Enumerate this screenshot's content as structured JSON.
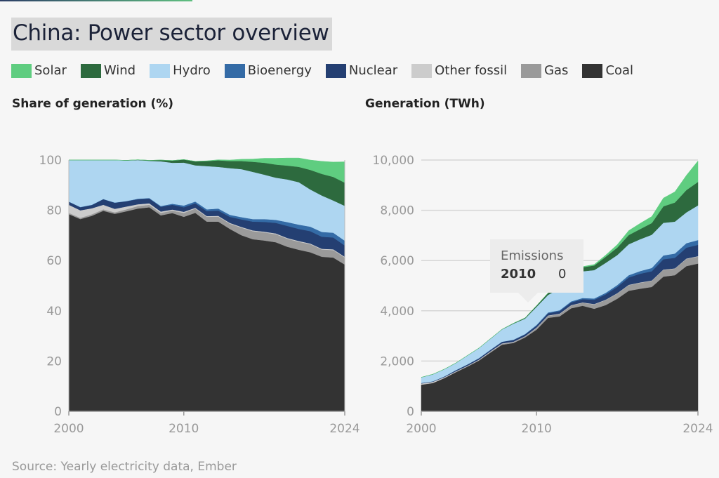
{
  "title": "China: Power sector overview",
  "legend": [
    {
      "label": "Solar",
      "color": "#5fcd80"
    },
    {
      "label": "Wind",
      "color": "#2d6a3e"
    },
    {
      "label": "Hydro",
      "color": "#aed6f1"
    },
    {
      "label": "Bioenergy",
      "color": "#346ba6"
    },
    {
      "label": "Nuclear",
      "color": "#243f72"
    },
    {
      "label": "Other fossil",
      "color": "#cccccc"
    },
    {
      "label": "Gas",
      "color": "#9a9a9a"
    },
    {
      "label": "Coal",
      "color": "#333333"
    }
  ],
  "source": "Source: Yearly electricity data, Ember",
  "tooltip": {
    "title": "Emissions",
    "year": "2010",
    "value": "0"
  },
  "chart_data": [
    {
      "type": "area",
      "stacked": true,
      "title": "Share of generation (%)",
      "xlabel": "",
      "ylabel": "",
      "x": [
        2000,
        2001,
        2002,
        2003,
        2004,
        2005,
        2006,
        2007,
        2008,
        2009,
        2010,
        2011,
        2012,
        2013,
        2014,
        2015,
        2016,
        2017,
        2018,
        2019,
        2020,
        2021,
        2022,
        2023,
        2024
      ],
      "xticks": [
        "2000",
        "2010",
        "2024"
      ],
      "yticks": [
        "0",
        "20",
        "40",
        "60",
        "80",
        "100"
      ],
      "ylim": [
        0,
        100
      ],
      "grid": false,
      "series": [
        {
          "name": "Coal",
          "values": [
            78.5,
            76.5,
            77.8,
            79.8,
            78.6,
            79.6,
            80.7,
            81.2,
            78.0,
            78.9,
            77.4,
            79.0,
            75.5,
            75.5,
            72.6,
            70.1,
            68.5,
            68.0,
            67.3,
            65.5,
            64.3,
            63.3,
            61.5,
            61.2,
            58.4
          ]
        },
        {
          "name": "Gas",
          "values": [
            0.5,
            0.5,
            0.6,
            0.6,
            0.6,
            0.8,
            1.0,
            1.0,
            1.0,
            1.0,
            1.6,
            1.7,
            1.9,
            2.0,
            2.1,
            3.0,
            3.2,
            3.2,
            3.2,
            3.2,
            3.2,
            3.2,
            2.9,
            3.0,
            2.8
          ]
        },
        {
          "name": "Other fossil",
          "values": [
            3.2,
            3.0,
            2.4,
            1.8,
            1.4,
            1.1,
            0.7,
            0.6,
            0.5,
            0.4,
            0.4,
            0.3,
            0.3,
            0.3,
            0.3,
            0.3,
            0.3,
            0.3,
            0.3,
            0.3,
            0.3,
            0.3,
            0.3,
            0.3,
            0.3
          ]
        },
        {
          "name": "Nuclear",
          "values": [
            1.2,
            1.2,
            1.3,
            2.2,
            2.4,
            2.1,
            2.0,
            1.9,
            1.9,
            1.9,
            1.8,
            1.8,
            2.0,
            2.1,
            2.4,
            3.0,
            3.5,
            3.9,
            4.2,
            4.8,
            4.8,
            4.9,
            4.8,
            4.7,
            4.5
          ]
        },
        {
          "name": "Bioenergy",
          "values": [
            0.1,
            0.1,
            0.1,
            0.1,
            0.1,
            0.1,
            0.2,
            0.2,
            0.3,
            0.4,
            0.7,
            0.7,
            0.7,
            0.8,
            0.8,
            0.9,
            1.0,
            1.1,
            1.2,
            1.5,
            1.7,
            1.8,
            1.9,
            1.9,
            1.9
          ]
        },
        {
          "name": "Hydro",
          "values": [
            16.5,
            18.7,
            17.8,
            15.5,
            16.9,
            16.1,
            15.4,
            14.8,
            17.8,
            16.3,
            17.1,
            14.4,
            17.2,
            16.6,
            18.6,
            19.1,
            18.8,
            17.7,
            16.8,
            17.0,
            16.9,
            14.8,
            14.5,
            12.8,
            13.9
          ]
        },
        {
          "name": "Wind",
          "values": [
            0.0,
            0.0,
            0.0,
            0.0,
            0.0,
            0.1,
            0.1,
            0.2,
            0.5,
            0.9,
            1.2,
            1.6,
            2.0,
            2.6,
            2.8,
            3.2,
            4.0,
            4.7,
            5.2,
            5.5,
            6.1,
            7.8,
            8.6,
            9.4,
            9.2
          ]
        },
        {
          "name": "Solar",
          "values": [
            0.0,
            0.0,
            0.0,
            0.0,
            0.0,
            0.0,
            0.0,
            0.0,
            0.0,
            0.0,
            0.0,
            0.0,
            0.1,
            0.2,
            0.4,
            0.7,
            1.1,
            1.8,
            2.5,
            3.0,
            3.5,
            3.9,
            5.0,
            5.9,
            8.3
          ]
        }
      ]
    },
    {
      "type": "area",
      "stacked": true,
      "title": "Generation (TWh)",
      "xlabel": "",
      "ylabel": "",
      "x": [
        2000,
        2001,
        2002,
        2003,
        2004,
        2005,
        2006,
        2007,
        2008,
        2009,
        2010,
        2011,
        2012,
        2013,
        2014,
        2015,
        2016,
        2017,
        2018,
        2019,
        2020,
        2021,
        2022,
        2023,
        2024
      ],
      "xticks": [
        "2000",
        "2010",
        "2024"
      ],
      "yticks": [
        "0",
        "2,000",
        "4,000",
        "6,000",
        "8,000",
        "10,000"
      ],
      "ylim": [
        0,
        10000
      ],
      "grid": true,
      "series": [
        {
          "name": "Coal",
          "values": [
            1060,
            1125,
            1320,
            1560,
            1780,
            2020,
            2340,
            2650,
            2720,
            2940,
            3250,
            3720,
            3780,
            4100,
            4200,
            4080,
            4230,
            4480,
            4800,
            4880,
            4950,
            5360,
            5420,
            5780,
            5880
          ]
        },
        {
          "name": "Gas",
          "values": [
            7,
            7,
            10,
            12,
            14,
            20,
            30,
            33,
            35,
            37,
            67,
            80,
            95,
            110,
            120,
            175,
            198,
            210,
            220,
            235,
            245,
            270,
            256,
            285,
            280
          ]
        },
        {
          "name": "Other fossil",
          "values": [
            43,
            44,
            31,
            23,
            20,
            20,
            20,
            20,
            17,
            15,
            17,
            15,
            15,
            15,
            15,
            15,
            15,
            15,
            15,
            15,
            15,
            15,
            15,
            15,
            15
          ]
        },
        {
          "name": "Nuclear",
          "values": [
            17,
            18,
            25,
            43,
            50,
            53,
            55,
            62,
            68,
            70,
            74,
            87,
            97,
            110,
            130,
            170,
            213,
            248,
            295,
            348,
            366,
            408,
            418,
            434,
            451
          ]
        },
        {
          "name": "Bioenergy",
          "values": [
            2,
            2,
            2,
            2,
            2,
            3,
            5,
            7,
            10,
            13,
            30,
            33,
            35,
            40,
            45,
            52,
            62,
            72,
            88,
            105,
            130,
            150,
            170,
            180,
            190
          ]
        },
        {
          "name": "Hydro",
          "values": [
            222,
            277,
            288,
            283,
            354,
            398,
            436,
            485,
            640,
            616,
            722,
            699,
            872,
            905,
            1064,
            1127,
            1193,
            1194,
            1232,
            1270,
            1322,
            1300,
            1270,
            1226,
            1380
          ]
        },
        {
          "name": "Wind",
          "values": [
            1,
            1,
            1,
            1,
            1,
            2,
            4,
            6,
            15,
            28,
            45,
            75,
            100,
            140,
            160,
            186,
            241,
            295,
            366,
            405,
            466,
            656,
            762,
            886,
            932
          ]
        },
        {
          "name": "Solar",
          "values": [
            0,
            0,
            0,
            0,
            0,
            0,
            0,
            0,
            0,
            0,
            1,
            3,
            6,
            15,
            25,
            39,
            66,
            117,
            177,
            224,
            261,
            327,
            427,
            584,
            834
          ]
        }
      ]
    }
  ]
}
